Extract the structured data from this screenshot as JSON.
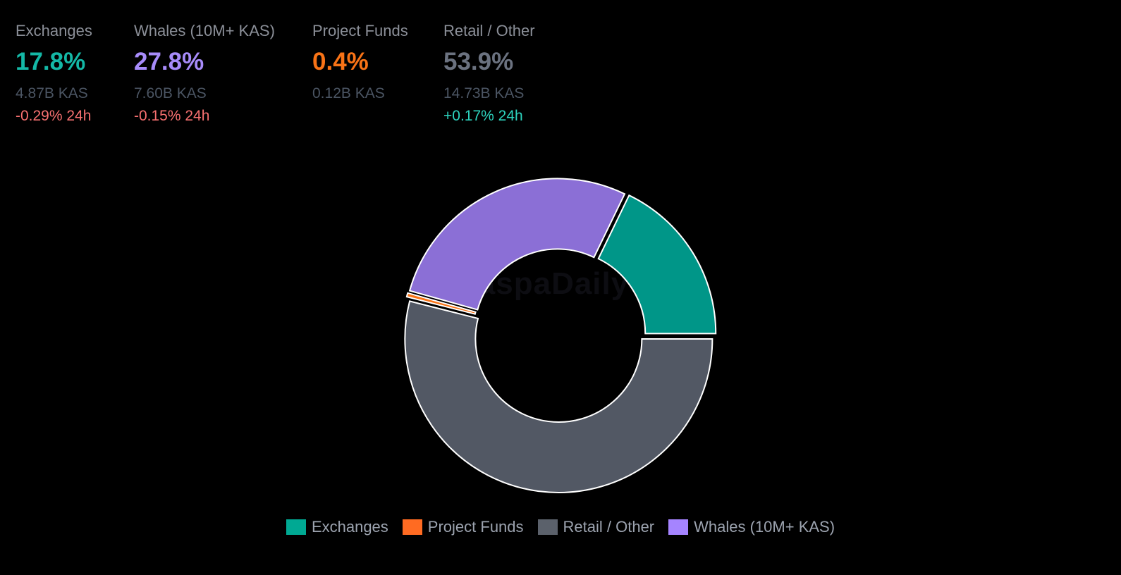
{
  "stats": [
    {
      "label": "Exchanges",
      "pct": "17.8%",
      "amount": "4.87B KAS",
      "change": "-0.29% 24h",
      "color": "#14b8a6",
      "change_color": "#f87171"
    },
    {
      "label": "Whales (10M+ KAS)",
      "pct": "27.8%",
      "amount": "7.60B KAS",
      "change": "-0.15% 24h",
      "color": "#a78bfa",
      "change_color": "#f87171"
    },
    {
      "label": "Project Funds",
      "pct": "0.4%",
      "amount": "0.12B KAS",
      "change": "",
      "color": "#f97316",
      "change_color": "#f87171"
    },
    {
      "label": "Retail / Other",
      "pct": "53.9%",
      "amount": "14.73B KAS",
      "change": "+0.17% 24h",
      "color": "#6b7280",
      "change_color": "#2dd4bf"
    }
  ],
  "watermark": "KaspaDaily",
  "chart_data": {
    "type": "pie",
    "variant": "donut",
    "categories": [
      "Exchanges",
      "Project Funds",
      "Retail / Other",
      "Whales (10M+ KAS)"
    ],
    "values": [
      17.8,
      0.4,
      53.9,
      27.8
    ],
    "colors": [
      "#009688",
      "#f97316",
      "#525864",
      "#8b6fd6"
    ],
    "legend_colors": [
      "#00a993",
      "#ff6b22",
      "#5b616b",
      "#a584ff"
    ],
    "legend": [
      "Exchanges",
      "Project Funds",
      "Retail / Other",
      "Whales (10M+ KAS)"
    ],
    "legend_position": "bottom",
    "title": ""
  }
}
